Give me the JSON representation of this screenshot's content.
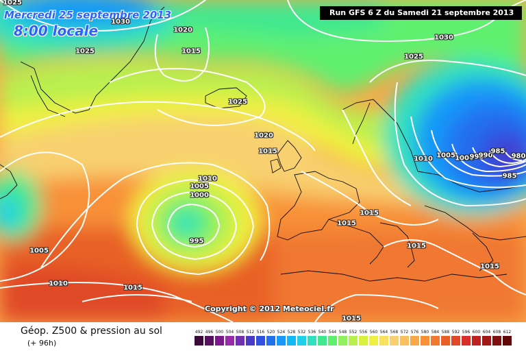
{
  "header": {
    "date": "Mercredi 25 septembre 2013",
    "time": "8:00 locale",
    "run": "Run GFS 6 Z du Samedi 21 septembre 2013"
  },
  "copyright": "Copyright © 2012 Meteociel.fr",
  "legend": {
    "title": "Géop. Z500 & pression au sol",
    "subtitle": "(+ 96h)",
    "levels": [
      "492",
      "496",
      "500",
      "504",
      "508",
      "512",
      "516",
      "520",
      "524",
      "528",
      "532",
      "536",
      "540",
      "544",
      "548",
      "552",
      "556",
      "560",
      "564",
      "568",
      "572",
      "576",
      "580",
      "584",
      "588",
      "592",
      "596",
      "600",
      "604",
      "608",
      "612"
    ],
    "colors": [
      "#3a0a3a",
      "#5a1060",
      "#7a1a8a",
      "#9a2aaa",
      "#7030b0",
      "#4a3ac8",
      "#3050e0",
      "#2070f0",
      "#1898f8",
      "#10b8f8",
      "#20d0e8",
      "#30e0c0",
      "#40e890",
      "#60f070",
      "#90f060",
      "#b8f050",
      "#d8f040",
      "#f0f040",
      "#f8e060",
      "#f8d070",
      "#f8c060",
      "#f8a848",
      "#f89038",
      "#f07830",
      "#e86028",
      "#e04828",
      "#d83028",
      "#c02020",
      "#a01818",
      "#801010",
      "#600808"
    ]
  },
  "isobar_labels": [
    {
      "text": "1025"
    },
    {
      "text": "1030"
    },
    {
      "text": "1020"
    },
    {
      "text": "1025"
    },
    {
      "text": "1015"
    },
    {
      "text": "1025"
    },
    {
      "text": "1020"
    },
    {
      "text": "1015"
    },
    {
      "text": "1010"
    },
    {
      "text": "1005"
    },
    {
      "text": "1000"
    },
    {
      "text": "995"
    },
    {
      "text": "1005"
    },
    {
      "text": "1010"
    },
    {
      "text": "1015"
    },
    {
      "text": "1015"
    },
    {
      "text": "1015"
    },
    {
      "text": "1015"
    },
    {
      "text": "1015"
    },
    {
      "text": "1015"
    },
    {
      "text": "1030"
    },
    {
      "text": "1025"
    },
    {
      "text": "1010"
    },
    {
      "text": "1005"
    },
    {
      "text": "1000"
    },
    {
      "text": "995"
    },
    {
      "text": "990"
    },
    {
      "text": "985"
    },
    {
      "text": "980"
    },
    {
      "text": "985"
    }
  ]
}
